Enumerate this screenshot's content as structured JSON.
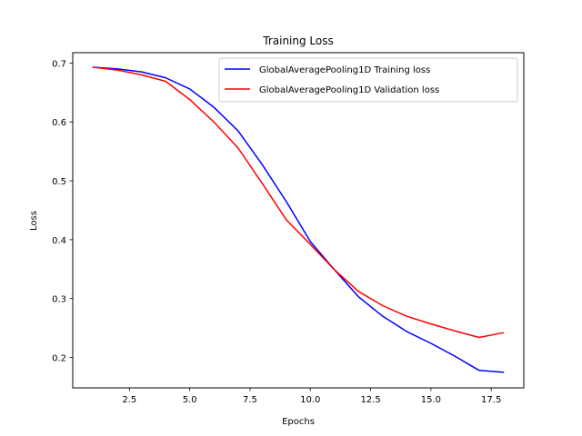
{
  "chart_data": {
    "type": "line",
    "title": "Training Loss",
    "xlabel": "Epochs",
    "ylabel": "Loss",
    "xlim": [
      0.15,
      18.85
    ],
    "ylim": [
      0.1484,
      0.7176
    ],
    "xticks": [
      2.5,
      5.0,
      7.5,
      10.0,
      12.5,
      15.0,
      17.5
    ],
    "xtick_labels": [
      "2.5",
      "5.0",
      "7.5",
      "10.0",
      "12.5",
      "15.0",
      "17.5"
    ],
    "yticks": [
      0.2,
      0.3,
      0.4,
      0.5,
      0.6,
      0.7
    ],
    "ytick_labels": [
      "0.2",
      "0.3",
      "0.4",
      "0.5",
      "0.6",
      "0.7"
    ],
    "grid": false,
    "legend_position": "upper right",
    "x": [
      1,
      2,
      3,
      4,
      5,
      6,
      7,
      8,
      9,
      10,
      11,
      12,
      13,
      14,
      15,
      16,
      17,
      18
    ],
    "series": [
      {
        "name": "GlobalAveragePooling1D Training loss",
        "color": "#0000ff",
        "values": [
          0.693,
          0.69,
          0.685,
          0.675,
          0.656,
          0.625,
          0.585,
          0.528,
          0.465,
          0.397,
          0.349,
          0.303,
          0.27,
          0.244,
          0.224,
          0.202,
          0.178,
          0.175
        ]
      },
      {
        "name": "GlobalAveragePooling1D Validation loss",
        "color": "#ff0000",
        "values": [
          0.693,
          0.688,
          0.68,
          0.669,
          0.638,
          0.6,
          0.556,
          0.496,
          0.434,
          0.392,
          0.349,
          0.312,
          0.288,
          0.27,
          0.257,
          0.245,
          0.234,
          0.242
        ]
      }
    ]
  }
}
